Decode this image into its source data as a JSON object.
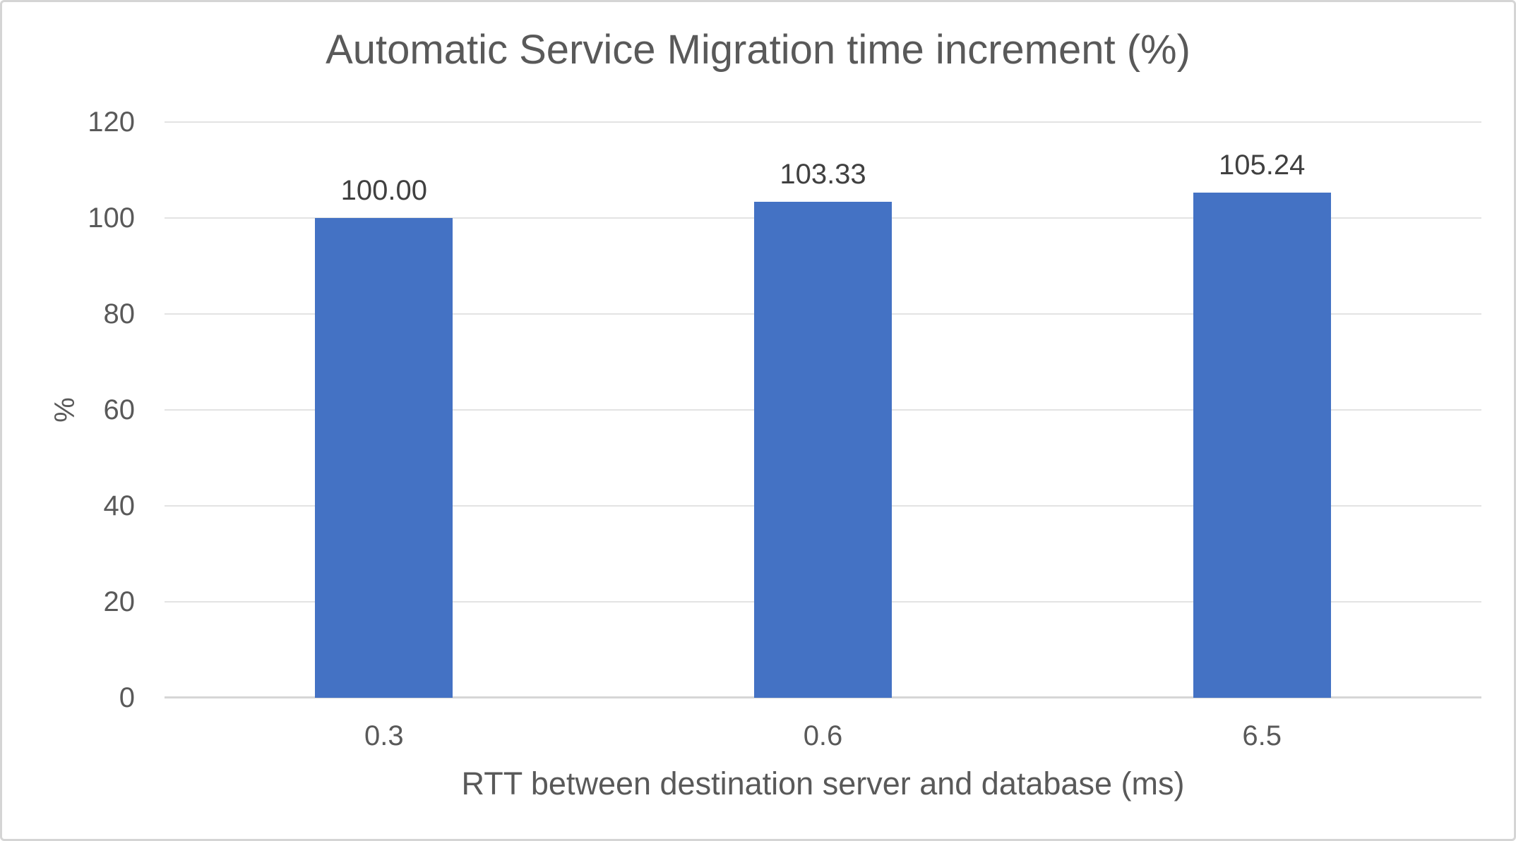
{
  "chart_data": {
    "type": "bar",
    "title": "Automatic Service Migration time increment (%)",
    "xlabel": "RTT between destination server and database (ms)",
    "ylabel": "%",
    "categories": [
      "0.3",
      "0.6",
      "6.5"
    ],
    "values": [
      100.0,
      103.33,
      105.24
    ],
    "data_labels": [
      "100.00",
      "103.33",
      "105.24"
    ],
    "ylim": [
      0,
      120
    ],
    "yticks": [
      0,
      20,
      40,
      60,
      80,
      100,
      120
    ],
    "grid": "horizontal",
    "legend": "none",
    "colors": {
      "bar": "#4472c4",
      "axis_text": "#595959",
      "data_label_text": "#404040",
      "gridline": "#e3e3e3",
      "axis_line": "#d6d6d6",
      "frame_border": "#d5d5d5",
      "background": "#ffffff"
    }
  }
}
